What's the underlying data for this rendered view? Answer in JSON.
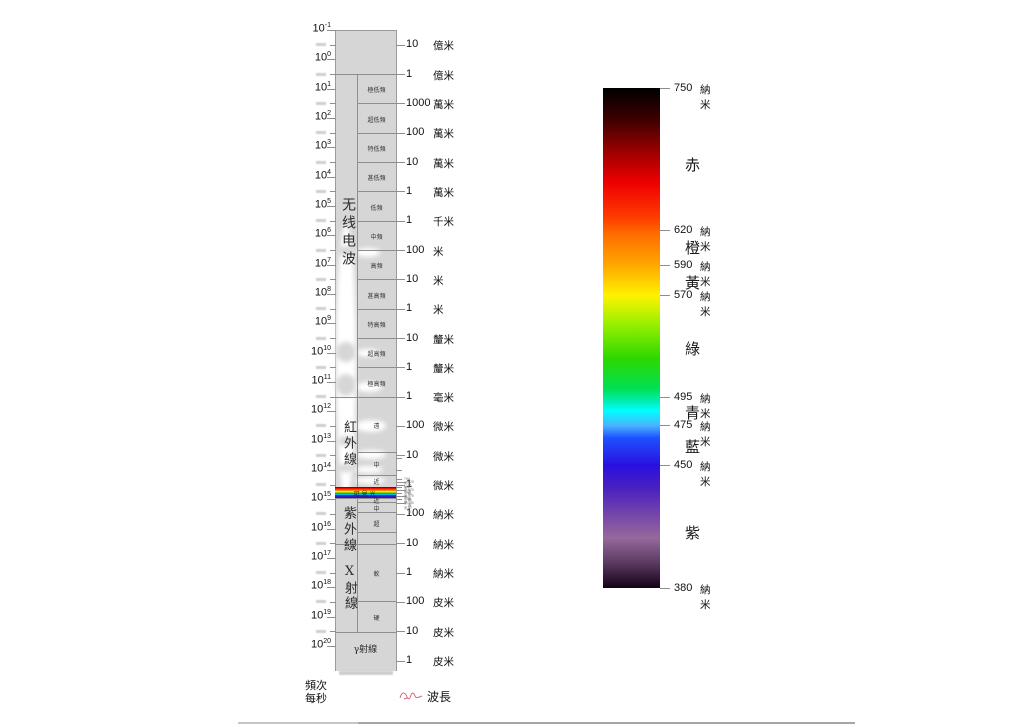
{
  "frequency_axis": {
    "unit_lines": [
      "頻次",
      "每秒"
    ],
    "base": "10",
    "exponents": [
      "-1",
      "0",
      "1",
      "2",
      "3",
      "4",
      "5",
      "6",
      "7",
      "8",
      "9",
      "10",
      "11",
      "12",
      "13",
      "14",
      "15",
      "16",
      "17",
      "18",
      "19",
      "20"
    ]
  },
  "wavelength_axis": {
    "unit_label": "波長",
    "ticks": [
      {
        "value": "10",
        "unit": "億米"
      },
      {
        "value": "1",
        "unit": "億米"
      },
      {
        "value": "1000",
        "unit": "萬米"
      },
      {
        "value": "100",
        "unit": "萬米"
      },
      {
        "value": "10",
        "unit": "萬米"
      },
      {
        "value": "1",
        "unit": "萬米"
      },
      {
        "value": "1",
        "unit": "千米"
      },
      {
        "value": "100",
        "unit": "米"
      },
      {
        "value": "10",
        "unit": "米"
      },
      {
        "value": "1",
        "unit": "米"
      },
      {
        "value": "10",
        "unit": "釐米"
      },
      {
        "value": "1",
        "unit": "釐米"
      },
      {
        "value": "1",
        "unit": "毫米"
      },
      {
        "value": "100",
        "unit": "微米"
      },
      {
        "value": "10",
        "unit": "微米"
      },
      {
        "value": "1",
        "unit": "微米"
      },
      {
        "value": "100",
        "unit": "納米"
      },
      {
        "value": "10",
        "unit": "納米"
      },
      {
        "value": "1",
        "unit": "納米"
      },
      {
        "value": "100",
        "unit": "皮米"
      },
      {
        "value": "10",
        "unit": "皮米"
      },
      {
        "value": "1",
        "unit": "皮米"
      }
    ]
  },
  "spectrum_column": {
    "regions": {
      "radio": "无线电波",
      "infrared": "紅外線",
      "visible": "可見光",
      "ultraviolet": "紫外線",
      "xray": "X射線",
      "gamma": "γ射線"
    },
    "radio_bands": [
      "極低頻",
      "超低頻",
      "特低頻",
      "甚低頻",
      "低頻",
      "中頻",
      "高頻",
      "甚高頻",
      "特高頻",
      "超高頻",
      "極高頻"
    ],
    "infrared_bands": [
      "遠",
      "中",
      "近"
    ],
    "ultraviolet_bands": [
      "近",
      "中",
      "超"
    ],
    "xray_bands": [
      "軟",
      "硬"
    ]
  },
  "colorbar": {
    "ticks": [
      {
        "value": "750",
        "unit": "納米"
      },
      {
        "value": "620",
        "unit": "納米"
      },
      {
        "value": "590",
        "unit": "納米"
      },
      {
        "value": "570",
        "unit": "納米"
      },
      {
        "value": "495",
        "unit": "納米"
      },
      {
        "value": "475",
        "unit": "納米"
      },
      {
        "value": "450",
        "unit": "納米"
      },
      {
        "value": "380",
        "unit": "納米"
      }
    ],
    "color_names": [
      "赤",
      "橙",
      "黃",
      "綠",
      "青",
      "藍",
      "紫"
    ]
  }
}
